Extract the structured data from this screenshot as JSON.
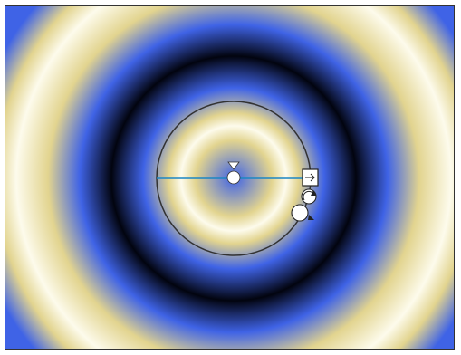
{
  "editor": {
    "gradient_type": "radial",
    "repeat": "reflect",
    "stops": [
      {
        "color": "#fdfbec"
      },
      {
        "color": "#e2d48f"
      },
      {
        "color": "#3f63e6"
      },
      {
        "color": "#02040f"
      }
    ],
    "handles": [
      {
        "icon": "arrow-down-icon"
      },
      {
        "icon": "center-handle-icon"
      },
      {
        "icon": "square-handle-icon"
      },
      {
        "icon": "rotate-handle-icon"
      },
      {
        "icon": "scale-handle-icon"
      }
    ],
    "guide_color": "#333333",
    "axis_color": "#1b86c4"
  }
}
